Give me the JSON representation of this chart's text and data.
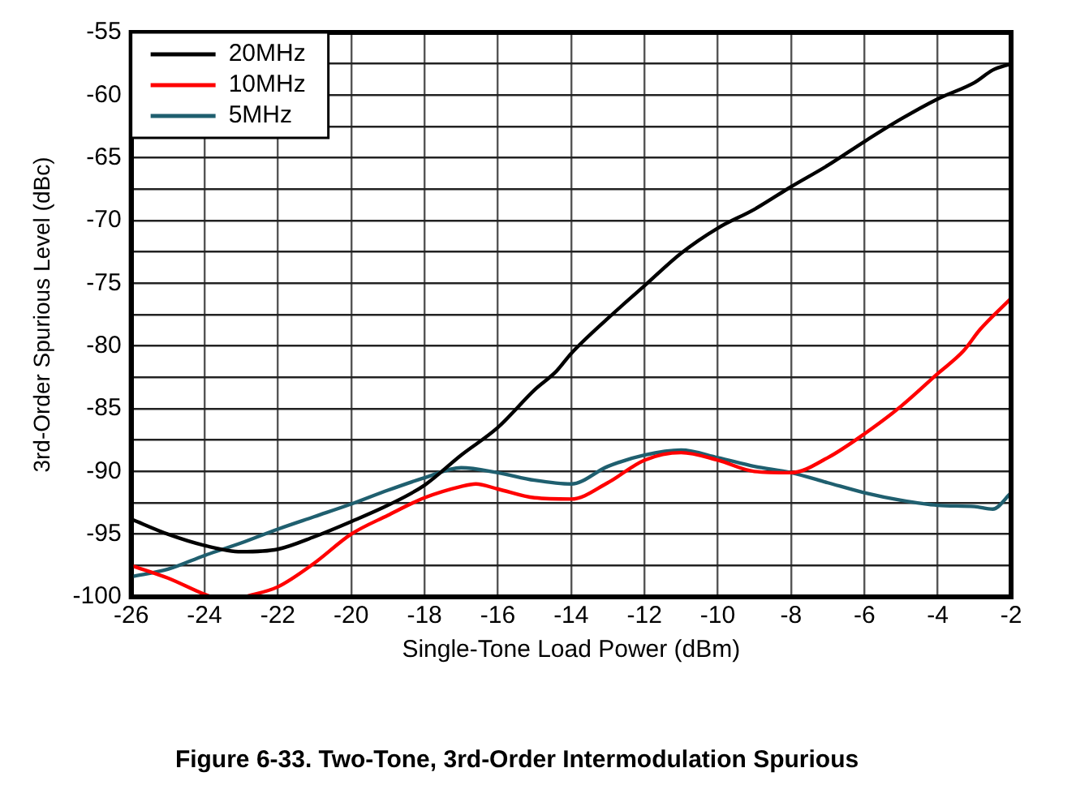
{
  "chart_data": {
    "type": "line",
    "title": "Figure 6-33. Two-Tone, 3rd-Order Intermodulation Spurious",
    "xlabel": "Single-Tone Load Power (dBm)",
    "ylabel": "3rd-Order Spurious Level (dBc)",
    "xlim": [
      -26,
      -2
    ],
    "xticks": [
      -26,
      -24,
      -22,
      -20,
      -18,
      -16,
      -14,
      -12,
      -10,
      -8,
      -6,
      -4,
      -2
    ],
    "ylim": [
      -100,
      -55
    ],
    "yticks": [
      -100,
      {
        "value": -97.5,
        "label": null
      },
      -95,
      {
        "value": -92.5,
        "label": null
      },
      -90,
      {
        "value": -87.5,
        "label": null
      },
      -85,
      {
        "value": -82.5,
        "label": null
      },
      -80,
      {
        "value": -77.5,
        "label": null
      },
      -75,
      {
        "value": -72.5,
        "label": null
      },
      -70,
      {
        "value": -67.5,
        "label": null
      },
      -65,
      {
        "value": -62.5,
        "label": null
      },
      -60,
      {
        "value": -57.5,
        "label": null
      },
      -55
    ],
    "grid": true,
    "legend": "top left",
    "line_style": "solid",
    "marker": "none",
    "series": [
      {
        "name": "20MHz",
        "color": "#000000",
        "x": [
          -26,
          -25,
          -24,
          -23,
          -22,
          -21,
          -20,
          -19,
          -18,
          -17,
          -16,
          -15,
          -14.4,
          -14,
          -13,
          -12,
          -11,
          -10,
          -9,
          -8,
          -7,
          -6,
          -5,
          -4,
          -3,
          -2.5,
          -2
        ],
        "values": [
          -93.8,
          -95,
          -95.9,
          -96.4,
          -96.2,
          -95.2,
          -94,
          -92.7,
          -91.1,
          -88.7,
          -86.5,
          -83.5,
          -82,
          -80.6,
          -77.8,
          -75.2,
          -72.6,
          -70.6,
          -69.1,
          -67.3,
          -65.6,
          -63.7,
          -61.9,
          -60.3,
          -59,
          -58,
          -57.5
        ]
      },
      {
        "name": "10MHz",
        "color": "#ff0000",
        "x": [
          -26,
          -25,
          -24,
          -23.8,
          -23.3,
          -22.9,
          -22,
          -21,
          -20,
          -19,
          -18,
          -17,
          -16.6,
          -16,
          -15,
          -14,
          -13,
          -12,
          -11,
          -10,
          -9,
          -8,
          -7,
          -6,
          -5,
          -4,
          -3.3,
          -2.85,
          -2
        ],
        "values": [
          -97.5,
          -98.5,
          -99.8,
          -100,
          null,
          -100,
          -99.2,
          -97.3,
          -95,
          -93.5,
          -92.1,
          -91.2,
          -91,
          -91.4,
          -92.1,
          -92.2,
          -90.9,
          -89.1,
          -88.5,
          -89.1,
          -90,
          -90.1,
          -88.9,
          -87,
          -84.8,
          -82.2,
          -80.4,
          -78.7,
          -76.2
        ]
      },
      {
        "name": "5MHz",
        "color": "#1f5f6f",
        "x": [
          -26,
          -25,
          -24,
          -23,
          -22,
          -21,
          -20,
          -19,
          -18,
          -17,
          -16,
          -15,
          -14,
          -13,
          -12,
          -11,
          -10,
          -9,
          -8,
          -7,
          -6,
          -5,
          -4,
          -3,
          -2.5,
          -2
        ],
        "values": [
          -98.4,
          -97.8,
          -96.7,
          -95.7,
          -94.6,
          -93.6,
          -92.6,
          -91.5,
          -90.5,
          -89.7,
          -90.1,
          -90.7,
          -91,
          -89.6,
          -88.7,
          -88.3,
          -88.9,
          -89.6,
          -90.1,
          -90.9,
          -91.7,
          -92.3,
          -92.7,
          -92.8,
          -93,
          -91.7
        ]
      }
    ]
  }
}
